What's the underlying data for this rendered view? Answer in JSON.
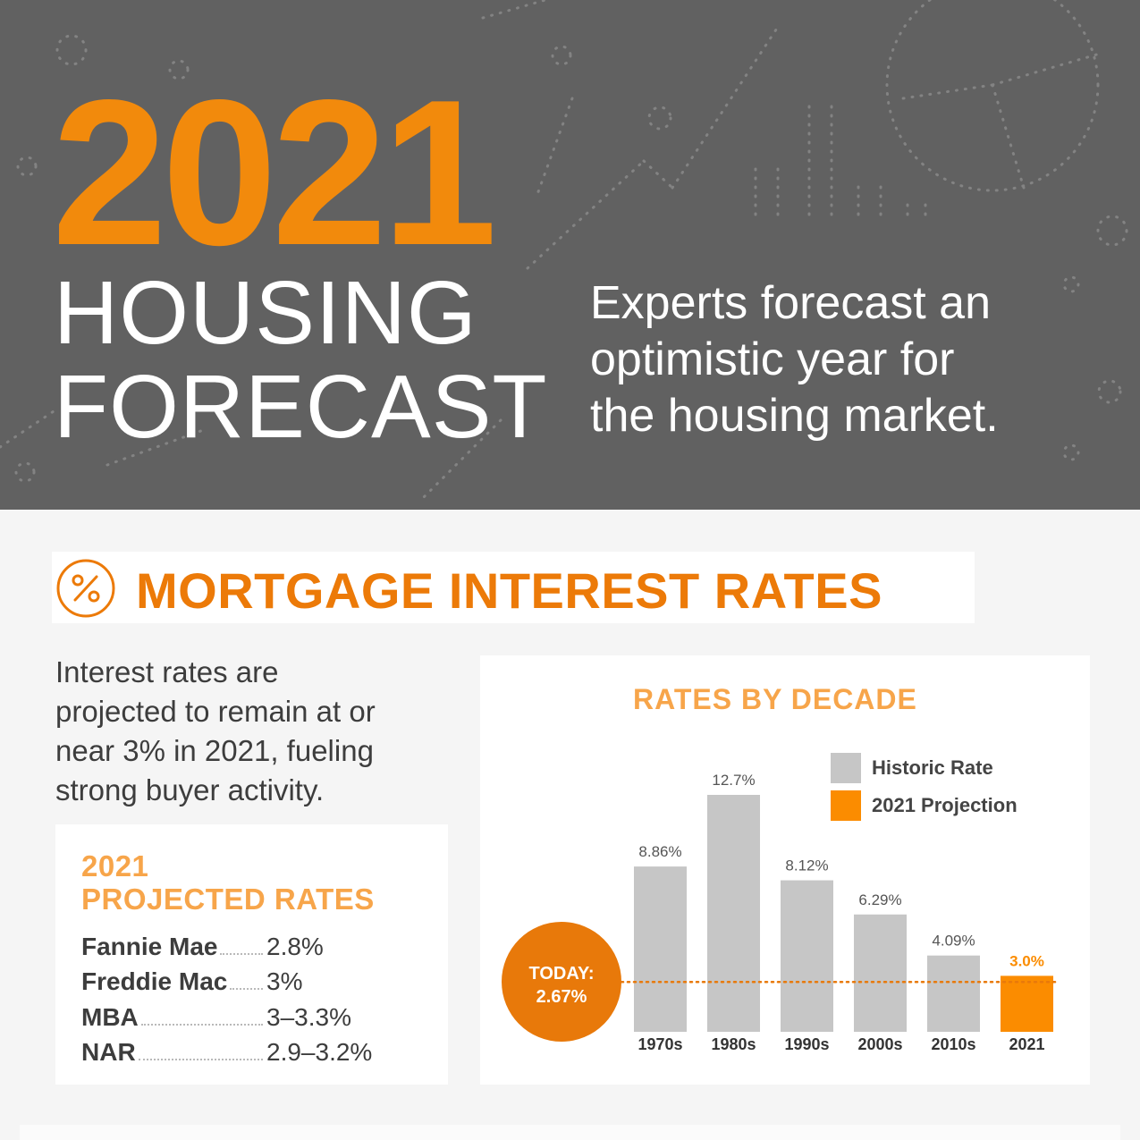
{
  "hero": {
    "year": "2021",
    "title_line1": "HOUSING",
    "title_line2": "FORECAST",
    "tagline": [
      "Experts forecast an",
      "optimistic year for",
      "the housing market."
    ]
  },
  "section": {
    "icon": "percent-circle-icon",
    "title": "MORTGAGE INTEREST RATES",
    "intro": [
      "Interest rates are",
      "projected to remain at or",
      "near 3% in 2021, fueling",
      "strong buyer activity."
    ]
  },
  "projected_rates": {
    "title": [
      "2021",
      "PROJECTED RATES"
    ],
    "rows": [
      {
        "name": "Fannie Mae",
        "value": "2.8%"
      },
      {
        "name": "Freddie Mac",
        "value": "3%"
      },
      {
        "name": "MBA",
        "value": "3–3.3%"
      },
      {
        "name": "NAR",
        "value": "2.9–3.2%"
      }
    ]
  },
  "colors": {
    "accent": "#f28a0c",
    "accent_light": "#f7a54a",
    "hero_bg": "#616161",
    "historic_bar": "#c6c6c6",
    "projection_bar": "#fb8c00",
    "today_circle": "#e8790a"
  },
  "chart_data": {
    "type": "bar",
    "title": "RATES BY DECADE",
    "categories": [
      "1970s",
      "1980s",
      "1990s",
      "2000s",
      "2010s",
      "2021"
    ],
    "series": [
      {
        "name": "Historic Rate",
        "values": [
          8.86,
          12.7,
          8.12,
          6.29,
          4.09,
          null
        ]
      },
      {
        "name": "2021 Projection",
        "values": [
          null,
          null,
          null,
          null,
          null,
          3.0
        ]
      }
    ],
    "value_labels": [
      "8.86%",
      "12.7%",
      "8.12%",
      "6.29%",
      "4.09%",
      "3.0%"
    ],
    "legend": {
      "position": "top-right",
      "entries": [
        "Historic Rate",
        "2021 Projection"
      ]
    },
    "reference_line": {
      "value": 2.67,
      "label_line1": "TODAY:",
      "label_line2": "2.67%"
    },
    "ylim": [
      0,
      12.7
    ],
    "grid": false
  }
}
